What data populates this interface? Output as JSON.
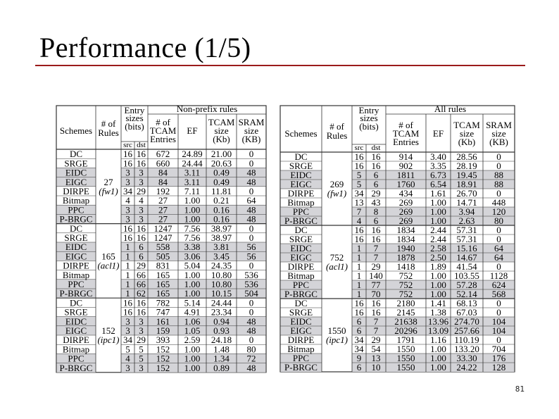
{
  "slide": {
    "title": "Performance (1/5)",
    "page_number": "81"
  },
  "colors": {
    "title_rule": "#9b1b1b",
    "highlight_row": "#d4d4d8",
    "grid": "#333333"
  },
  "left_table": {
    "group_header": "Non-prefix rules",
    "headers": {
      "schemes": "Schemes",
      "num_rules": [
        "# of",
        "Rules"
      ],
      "entry_sizes": [
        "Entry",
        "sizes",
        "(bits)"
      ],
      "src": "src",
      "dst": "dst",
      "tcam_entries": [
        "# of",
        "TCAM",
        "Entries"
      ],
      "ef": "EF",
      "tcam_size": [
        "TCAM",
        "size",
        "(Kb)"
      ],
      "sram_size": [
        "SRAM",
        "size",
        "(KB)"
      ]
    },
    "groups": [
      {
        "rules": "27",
        "set": "(fw1)",
        "rows": [
          {
            "scheme": "DC",
            "src": "16",
            "dst": "16",
            "entries": "672",
            "ef": "24.89",
            "tcam": "21.00",
            "sram": "0",
            "hl": false
          },
          {
            "scheme": "SRGE",
            "src": "16",
            "dst": "16",
            "entries": "660",
            "ef": "24.44",
            "tcam": "20.63",
            "sram": "0",
            "hl": false
          },
          {
            "scheme": "EIDC",
            "src": "3",
            "dst": "3",
            "entries": "84",
            "ef": "3.11",
            "tcam": "0.49",
            "sram": "48",
            "hl": true
          },
          {
            "scheme": "EIGC",
            "src": "3",
            "dst": "3",
            "entries": "84",
            "ef": "3.11",
            "tcam": "0.49",
            "sram": "48",
            "hl": true
          },
          {
            "scheme": "DIRPE",
            "src": "34",
            "dst": "29",
            "entries": "192",
            "ef": "7.11",
            "tcam": "11.81",
            "sram": "0",
            "hl": false
          },
          {
            "scheme": "Bitmap",
            "src": "4",
            "dst": "4",
            "entries": "27",
            "ef": "1.00",
            "tcam": "0.21",
            "sram": "64",
            "hl": false
          },
          {
            "scheme": "PPC",
            "src": "3",
            "dst": "3",
            "entries": "27",
            "ef": "1.00",
            "tcam": "0.16",
            "sram": "48",
            "hl": true
          },
          {
            "scheme": "P-BRGC",
            "src": "3",
            "dst": "3",
            "entries": "27",
            "ef": "1.00",
            "tcam": "0.16",
            "sram": "48",
            "hl": true
          }
        ]
      },
      {
        "rules": "165",
        "set": "(acl1)",
        "rows": [
          {
            "scheme": "DC",
            "src": "16",
            "dst": "16",
            "entries": "1247",
            "ef": "7.56",
            "tcam": "38.97",
            "sram": "0",
            "hl": false
          },
          {
            "scheme": "SRGE",
            "src": "16",
            "dst": "16",
            "entries": "1247",
            "ef": "7.56",
            "tcam": "38.97",
            "sram": "0",
            "hl": false
          },
          {
            "scheme": "EIDC",
            "src": "1",
            "dst": "6",
            "entries": "558",
            "ef": "3.38",
            "tcam": "3.81",
            "sram": "56",
            "hl": true
          },
          {
            "scheme": "EIGC",
            "src": "1",
            "dst": "6",
            "entries": "505",
            "ef": "3.06",
            "tcam": "3.45",
            "sram": "56",
            "hl": true
          },
          {
            "scheme": "DIRPE",
            "src": "1",
            "dst": "29",
            "entries": "831",
            "ef": "5.04",
            "tcam": "24.35",
            "sram": "0",
            "hl": false
          },
          {
            "scheme": "Bitmap",
            "src": "1",
            "dst": "66",
            "entries": "165",
            "ef": "1.00",
            "tcam": "10.80",
            "sram": "536",
            "hl": false
          },
          {
            "scheme": "PPC",
            "src": "1",
            "dst": "66",
            "entries": "165",
            "ef": "1.00",
            "tcam": "10.80",
            "sram": "536",
            "hl": true
          },
          {
            "scheme": "P-BRGC",
            "src": "1",
            "dst": "62",
            "entries": "165",
            "ef": "1.00",
            "tcam": "10.15",
            "sram": "504",
            "hl": true
          }
        ]
      },
      {
        "rules": "152",
        "set": "(ipc1)",
        "rows": [
          {
            "scheme": "DC",
            "src": "16",
            "dst": "16",
            "entries": "782",
            "ef": "5.14",
            "tcam": "24.44",
            "sram": "0",
            "hl": false
          },
          {
            "scheme": "SRGE",
            "src": "16",
            "dst": "16",
            "entries": "747",
            "ef": "4.91",
            "tcam": "23.34",
            "sram": "0",
            "hl": false
          },
          {
            "scheme": "EIDC",
            "src": "3",
            "dst": "3",
            "entries": "161",
            "ef": "1.06",
            "tcam": "0.94",
            "sram": "48",
            "hl": true
          },
          {
            "scheme": "EIGC",
            "src": "3",
            "dst": "3",
            "entries": "159",
            "ef": "1.05",
            "tcam": "0.93",
            "sram": "48",
            "hl": true
          },
          {
            "scheme": "DIRPE",
            "src": "34",
            "dst": "29",
            "entries": "393",
            "ef": "2.59",
            "tcam": "24.18",
            "sram": "0",
            "hl": false
          },
          {
            "scheme": "Bitmap",
            "src": "5",
            "dst": "5",
            "entries": "152",
            "ef": "1.00",
            "tcam": "1.48",
            "sram": "80",
            "hl": false
          },
          {
            "scheme": "PPC",
            "src": "4",
            "dst": "5",
            "entries": "152",
            "ef": "1.00",
            "tcam": "1.34",
            "sram": "72",
            "hl": true
          },
          {
            "scheme": "P-BRGC",
            "src": "3",
            "dst": "3",
            "entries": "152",
            "ef": "1.00",
            "tcam": "0.89",
            "sram": "48",
            "hl": true
          }
        ]
      }
    ]
  },
  "right_table": {
    "group_header": "All rules",
    "headers": {
      "schemes": "Schemes",
      "num_rules": [
        "# of",
        "Rules"
      ],
      "entry_sizes": [
        "Entry",
        "sizes",
        "(bits)"
      ],
      "src": "src",
      "dst": "dst",
      "tcam_entries": [
        "# of",
        "TCAM",
        "Entries"
      ],
      "ef": "EF",
      "tcam_size": [
        "TCAM",
        "size",
        "(Kb)"
      ],
      "sram_size": [
        "SRAM",
        "size",
        "(KB)"
      ]
    },
    "groups": [
      {
        "rules": "269",
        "set": "(fw1)",
        "rows": [
          {
            "scheme": "DC",
            "src": "16",
            "dst": "16",
            "entries": "914",
            "ef": "3.40",
            "tcam": "28.56",
            "sram": "0",
            "hl": false
          },
          {
            "scheme": "SRGE",
            "src": "16",
            "dst": "16",
            "entries": "902",
            "ef": "3.35",
            "tcam": "28.19",
            "sram": "0",
            "hl": false
          },
          {
            "scheme": "EIDC",
            "src": "5",
            "dst": "6",
            "entries": "1811",
            "ef": "6.73",
            "tcam": "19.45",
            "sram": "88",
            "hl": true
          },
          {
            "scheme": "EIGC",
            "src": "5",
            "dst": "6",
            "entries": "1760",
            "ef": "6.54",
            "tcam": "18.91",
            "sram": "88",
            "hl": true
          },
          {
            "scheme": "DIRPE",
            "src": "34",
            "dst": "29",
            "entries": "434",
            "ef": "1.61",
            "tcam": "26.70",
            "sram": "0",
            "hl": false
          },
          {
            "scheme": "Bitmap",
            "src": "13",
            "dst": "43",
            "entries": "269",
            "ef": "1.00",
            "tcam": "14.71",
            "sram": "448",
            "hl": false
          },
          {
            "scheme": "PPC",
            "src": "7",
            "dst": "8",
            "entries": "269",
            "ef": "1.00",
            "tcam": "3.94",
            "sram": "120",
            "hl": true
          },
          {
            "scheme": "P-BRGC",
            "src": "4",
            "dst": "6",
            "entries": "269",
            "ef": "1.00",
            "tcam": "2.63",
            "sram": "80",
            "hl": true
          }
        ]
      },
      {
        "rules": "752",
        "set": "(acl1)",
        "rows": [
          {
            "scheme": "DC",
            "src": "16",
            "dst": "16",
            "entries": "1834",
            "ef": "2.44",
            "tcam": "57.31",
            "sram": "0",
            "hl": false
          },
          {
            "scheme": "SRGE",
            "src": "16",
            "dst": "16",
            "entries": "1834",
            "ef": "2.44",
            "tcam": "57.31",
            "sram": "0",
            "hl": false
          },
          {
            "scheme": "EIDC",
            "src": "1",
            "dst": "7",
            "entries": "1940",
            "ef": "2.58",
            "tcam": "15.16",
            "sram": "64",
            "hl": true
          },
          {
            "scheme": "EIGC",
            "src": "1",
            "dst": "7",
            "entries": "1878",
            "ef": "2.50",
            "tcam": "14.67",
            "sram": "64",
            "hl": true
          },
          {
            "scheme": "DIRPE",
            "src": "1",
            "dst": "29",
            "entries": "1418",
            "ef": "1.89",
            "tcam": "41.54",
            "sram": "0",
            "hl": false
          },
          {
            "scheme": "Bitmap",
            "src": "1",
            "dst": "140",
            "entries": "752",
            "ef": "1.00",
            "tcam": "103.55",
            "sram": "1128",
            "hl": false
          },
          {
            "scheme": "PPC",
            "src": "1",
            "dst": "77",
            "entries": "752",
            "ef": "1.00",
            "tcam": "57.28",
            "sram": "624",
            "hl": true
          },
          {
            "scheme": "P-BRGC",
            "src": "1",
            "dst": "70",
            "entries": "752",
            "ef": "1.00",
            "tcam": "52.14",
            "sram": "568",
            "hl": true
          }
        ]
      },
      {
        "rules": "1550",
        "set": "(ipc1)",
        "rows": [
          {
            "scheme": "DC",
            "src": "16",
            "dst": "16",
            "entries": "2180",
            "ef": "1.41",
            "tcam": "68.13",
            "sram": "0",
            "hl": false
          },
          {
            "scheme": "SRGE",
            "src": "16",
            "dst": "16",
            "entries": "2145",
            "ef": "1.38",
            "tcam": "67.03",
            "sram": "0",
            "hl": false
          },
          {
            "scheme": "EIDC",
            "src": "6",
            "dst": "7",
            "entries": "21638",
            "ef": "13.96",
            "tcam": "274.70",
            "sram": "104",
            "hl": true
          },
          {
            "scheme": "EIGC",
            "src": "6",
            "dst": "7",
            "entries": "20296",
            "ef": "13.09",
            "tcam": "257.66",
            "sram": "104",
            "hl": true
          },
          {
            "scheme": "DIRPE",
            "src": "34",
            "dst": "29",
            "entries": "1791",
            "ef": "1.16",
            "tcam": "110.19",
            "sram": "0",
            "hl": false
          },
          {
            "scheme": "Bitmap",
            "src": "34",
            "dst": "54",
            "entries": "1550",
            "ef": "1.00",
            "tcam": "133.20",
            "sram": "704",
            "hl": false
          },
          {
            "scheme": "PPC",
            "src": "9",
            "dst": "13",
            "entries": "1550",
            "ef": "1.00",
            "tcam": "33.30",
            "sram": "176",
            "hl": true
          },
          {
            "scheme": "P-BRGC",
            "src": "6",
            "dst": "10",
            "entries": "1550",
            "ef": "1.00",
            "tcam": "24.22",
            "sram": "128",
            "hl": true
          }
        ]
      }
    ]
  }
}
